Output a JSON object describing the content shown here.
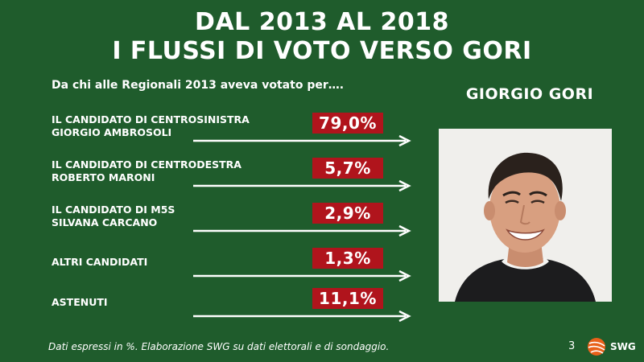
{
  "title": {
    "line1": "DAL 2013 AL 2018",
    "line2": "I FLUSSI DI VOTO VERSO GORI"
  },
  "subtitle": "Da chi alle Regionali 2013 aveva votato per….",
  "person_name": "GIORGIO GORI",
  "rows": [
    {
      "line1": "IL CANDIDATO DI CENTROSINISTRA",
      "line2": "GIORGIO AMBROSOLI",
      "value": "79,0%"
    },
    {
      "line1": "IL CANDIDATO DI CENTRODESTRA",
      "line2": "ROBERTO MARONI",
      "value": "5,7%"
    },
    {
      "line1": "IL CANDIDATO DI M5S",
      "line2": "SILVANA CARCANO",
      "value": "2,9%"
    },
    {
      "line1": "ALTRI CANDIDATI",
      "line2": "",
      "value": "1,3%"
    },
    {
      "line1": "ASTENUTI",
      "line2": "",
      "value": "11,1%"
    }
  ],
  "footer": {
    "note": "Dati espressi in %. Elaborazione SWG su dati elettorali e di sondaggio.",
    "page": "3",
    "logo_text": "SWG"
  },
  "colors": {
    "background": "#1f5c2c",
    "value_box": "#b0141c",
    "text": "#ffffff"
  },
  "icons": {
    "arrow": "right-arrow-icon",
    "logo": "swg-logo-icon"
  }
}
